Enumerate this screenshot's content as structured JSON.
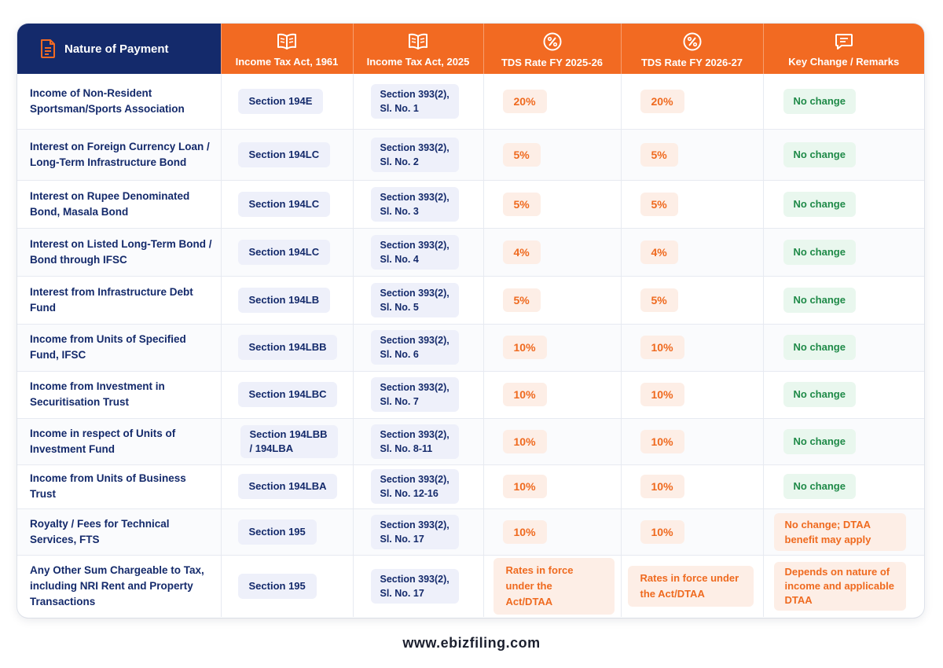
{
  "colors": {
    "navy": "#142a6b",
    "orange": "#f26a22",
    "green": "#1f8a48"
  },
  "headers": {
    "nature": "Nature of Payment",
    "act1961": "Income Tax Act, 1961",
    "act2025": "Income Tax Act, 2025",
    "fy2526": "TDS Rate FY 2025-26",
    "fy2627": "TDS Rate FY 2026-27",
    "remarks": "Key Change / Remarks"
  },
  "header_icons": {
    "nature": "document-icon",
    "act1961": "book-icon",
    "act2025": "book-icon",
    "fy2526": "percent-icon",
    "fy2627": "percent-icon",
    "remarks": "message-icon"
  },
  "rows": [
    {
      "nature": "Income of Non-Resident Sportsman/Sports Association",
      "old_section": "Section 194E",
      "new_section": [
        "Section 393(2),",
        "Sl. No. 1"
      ],
      "rate_2526": "20%",
      "rate_2627": "20%",
      "remark": "No change"
    },
    {
      "nature": "Interest on Foreign Currency Loan / Long-Term Infrastructure Bond",
      "old_section": "Section 194LC",
      "new_section": [
        "Section 393(2),",
        "Sl. No. 2"
      ],
      "rate_2526": "5%",
      "rate_2627": "5%",
      "remark": "No change"
    },
    {
      "nature": "Interest on Rupee Denominated Bond, Masala Bond",
      "old_section": "Section 194LC",
      "new_section": [
        "Section 393(2),",
        "Sl. No. 3"
      ],
      "rate_2526": "5%",
      "rate_2627": "5%",
      "remark": "No change"
    },
    {
      "nature": "Interest on Listed Long-Term Bond / Bond through IFSC",
      "old_section": "Section 194LC",
      "new_section": [
        "Section 393(2),",
        "Sl. No. 4"
      ],
      "rate_2526": "4%",
      "rate_2627": "4%",
      "remark": "No change"
    },
    {
      "nature": "Interest from Infrastructure Debt Fund",
      "old_section": "Section 194LB",
      "new_section": [
        "Section 393(2),",
        "Sl. No. 5"
      ],
      "rate_2526": "5%",
      "rate_2627": "5%",
      "remark": "No change"
    },
    {
      "nature": "Income from Units of Specified Fund, IFSC",
      "old_section": "Section 194LBB",
      "new_section": [
        "Section 393(2),",
        "Sl. No. 6"
      ],
      "rate_2526": "10%",
      "rate_2627": "10%",
      "remark": "No change"
    },
    {
      "nature": "Income from Investment in Securitisation Trust",
      "old_section": "Section 194LBC",
      "new_section": [
        "Section 393(2),",
        "Sl. No. 7"
      ],
      "rate_2526": "10%",
      "rate_2627": "10%",
      "remark": "No change"
    },
    {
      "nature": "Income in respect of Units of Investment Fund",
      "old_section": "Section 194LBB / 194LBA",
      "new_section": [
        "Section 393(2),",
        "Sl. No. 8-11"
      ],
      "rate_2526": "10%",
      "rate_2627": "10%",
      "remark": "No change"
    },
    {
      "nature": "Income from Units of Business Trust",
      "old_section": "Section 194LBA",
      "new_section": [
        "Section 393(2),",
        "Sl. No. 12-16"
      ],
      "rate_2526": "10%",
      "rate_2627": "10%",
      "remark": "No change"
    },
    {
      "nature": "Royalty / Fees for Technical Services, FTS",
      "old_section": "Section 195",
      "new_section": [
        "Section 393(2),",
        "Sl. No. 17"
      ],
      "rate_2526": "10%",
      "rate_2627": "10%",
      "remark": "No change; DTAA benefit may apply"
    },
    {
      "nature": "Any Other Sum Chargeable to Tax, including NRI Rent and Property Transactions",
      "old_section": "Section 195",
      "new_section": [
        "Section 393(2),",
        "Sl. No. 17"
      ],
      "rate_2526": "Rates in force under the Act/DTAA",
      "rate_2627": "Rates in force under the Act/DTAA",
      "remark": "Depends on nature of income and applicable DTAA"
    }
  ],
  "footer": "www.ebizfiling.com"
}
